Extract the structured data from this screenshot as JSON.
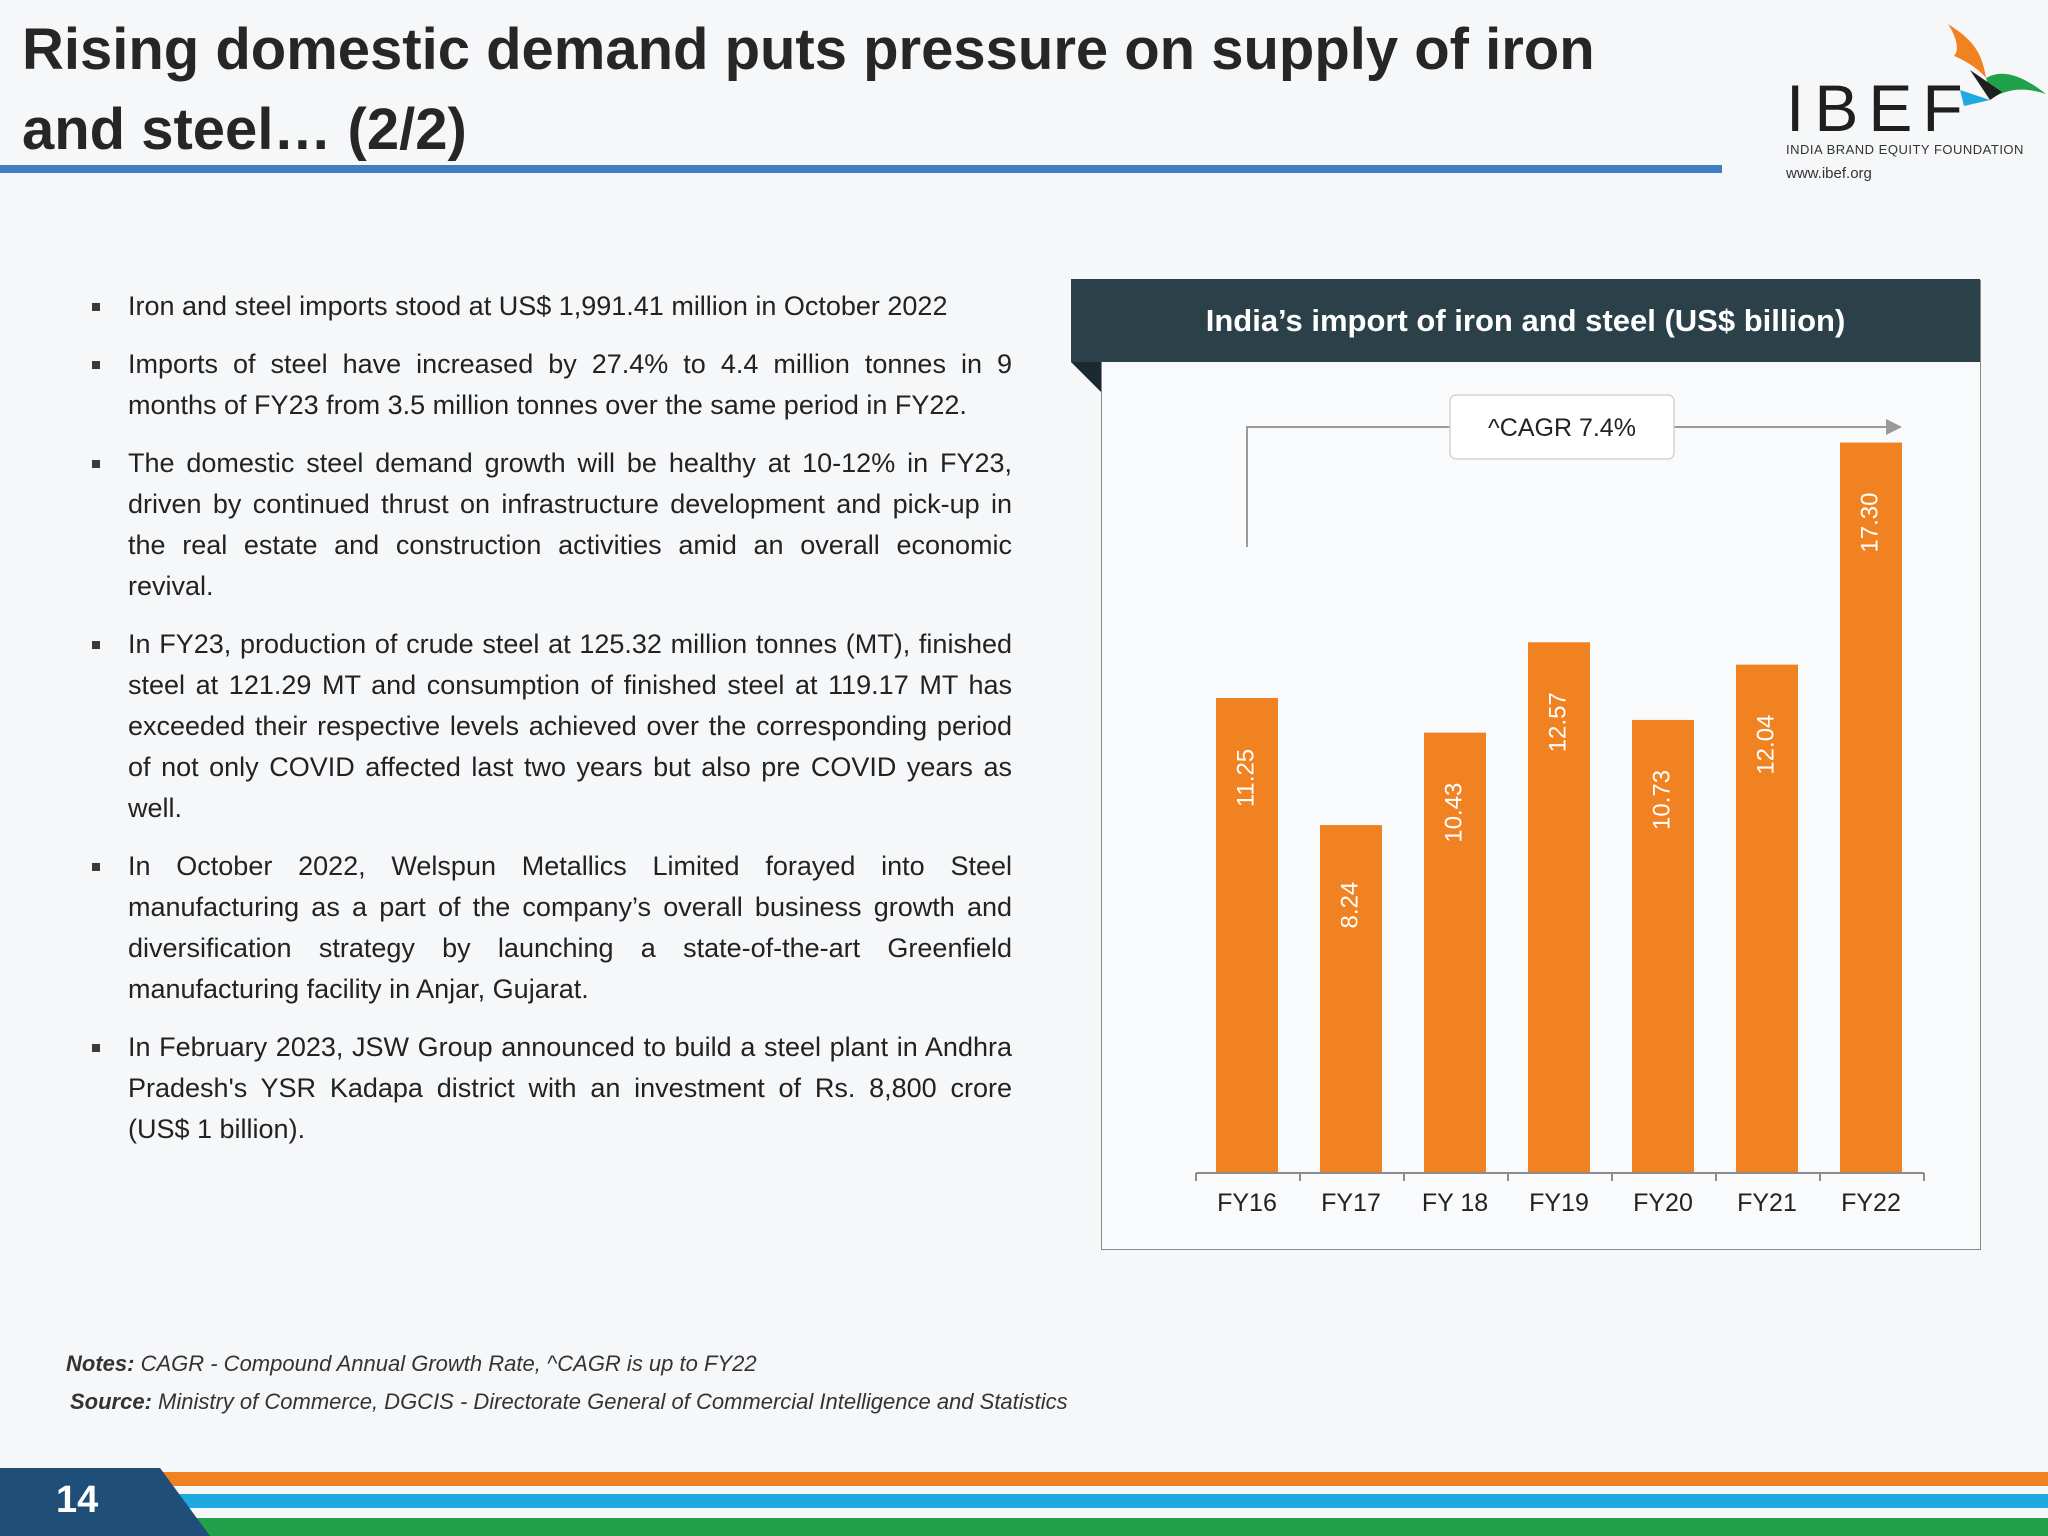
{
  "header": {
    "title": "Rising domestic demand puts pressure on supply of iron and steel… (2/2)"
  },
  "logo": {
    "word": "IBEF",
    "tagline": "INDIA BRAND EQUITY FOUNDATION",
    "url": "www.ibef.org"
  },
  "bullets": [
    "Iron and steel imports stood at US$ 1,991.41 million in October 2022",
    "Imports of steel have increased by 27.4% to 4.4 million tonnes in 9 months of FY23 from 3.5 million tonnes over the same period in FY22.",
    "The domestic steel demand growth will be healthy at 10-12% in FY23, driven by continued thrust on infrastructure development and pick-up in the real estate and construction activities amid an overall economic revival.",
    "In FY23, production of crude steel at 125.32 million tonnes (MT), finished steel at 121.29 MT and consumption of finished steel at 119.17 MT has exceeded their respective levels achieved over the corresponding period of not only COVID affected last two years but also pre COVID years as well.",
    "In October 2022, Welspun Metallics Limited forayed into Steel manufacturing as a part of the company’s overall business growth and diversification strategy by launching a state-of-the-art Greenfield manufacturing facility in Anjar, Gujarat.",
    "In February 2023, JSW Group announced to build a steel plant in Andhra Pradesh's YSR Kadapa district with an investment of Rs. 8,800 crore (US$ 1 billion)."
  ],
  "chart_data": {
    "type": "bar",
    "title": "India’s import of iron and steel (US$ billion)",
    "categories": [
      "FY16",
      "FY17",
      "FY 18",
      "FY19",
      "FY20",
      "FY21",
      "FY22"
    ],
    "values": [
      11.25,
      8.24,
      10.43,
      12.57,
      10.73,
      12.04,
      17.3
    ],
    "value_labels": [
      "11.25",
      "8.24",
      "10.43",
      "12.57",
      "10.73",
      "12.04",
      "17.30"
    ],
    "annotation": "^CAGR 7.4%",
    "ylim": [
      0,
      18
    ],
    "bar_color": "#f08222",
    "grid": false
  },
  "notes": {
    "notes_label": "Notes:",
    "notes_text": " CAGR - Compound Annual Growth Rate, ^CAGR is up to FY22",
    "source_label": "Source:",
    "source_text": " Ministry of Commerce, DGCIS - Directorate General of Commercial Intelligence and Statistics"
  },
  "footer": {
    "page_number": "14",
    "colors": [
      "#f08222",
      "#1fa9e1",
      "#21a24a"
    ]
  }
}
